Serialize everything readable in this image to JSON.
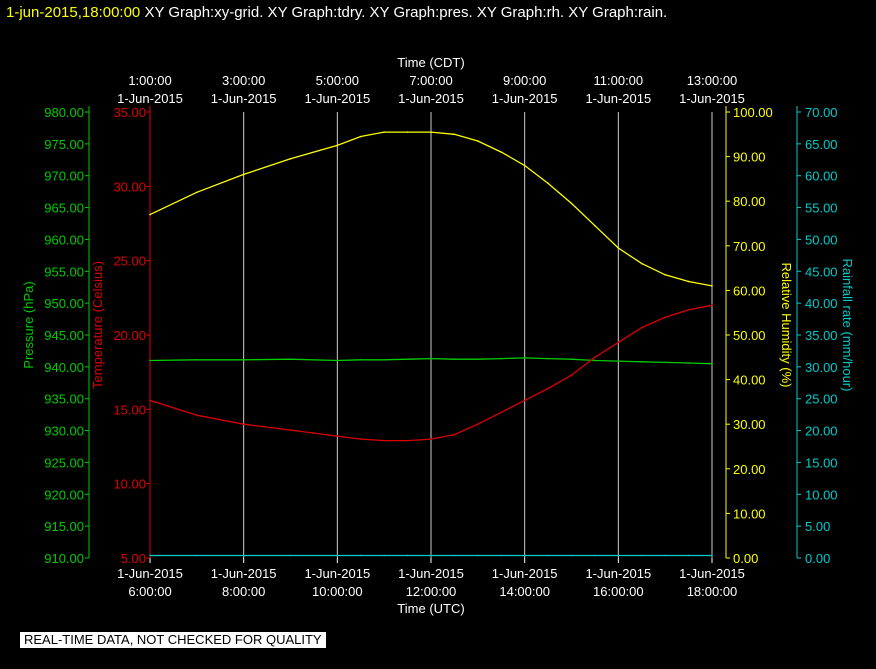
{
  "header": {
    "timestamp": "1-jun-2015,18:00:00",
    "graphs": "XY Graph:xy-grid.  XY Graph:tdry.  XY Graph:pres.  XY Graph:rh.  XY Graph:rain."
  },
  "banner": "REAL-TIME DATA, NOT CHECKED FOR QUALITY",
  "colors": {
    "pressure": "#00cc00",
    "temperature": "#dd0000",
    "humidity": "#ffff00",
    "rain": "#00cccc",
    "grid": "#ffffff",
    "background": "#000000"
  },
  "chart_data": {
    "type": "line",
    "grid": true,
    "x_axis_top": {
      "label": "Time (CDT)",
      "ticks": [
        {
          "time": "1:00:00",
          "date": "1-Jun-2015"
        },
        {
          "time": "3:00:00",
          "date": "1-Jun-2015"
        },
        {
          "time": "5:00:00",
          "date": "1-Jun-2015"
        },
        {
          "time": "7:00:00",
          "date": "1-Jun-2015"
        },
        {
          "time": "9:00:00",
          "date": "1-Jun-2015"
        },
        {
          "time": "11:00:00",
          "date": "1-Jun-2015"
        },
        {
          "time": "13:00:00",
          "date": "1-Jun-2015"
        }
      ]
    },
    "x_axis_bottom": {
      "label": "Time (UTC)",
      "ticks": [
        {
          "time": "6:00:00",
          "date": "1-Jun-2015"
        },
        {
          "time": "8:00:00",
          "date": "1-Jun-2015"
        },
        {
          "time": "10:00:00",
          "date": "1-Jun-2015"
        },
        {
          "time": "12:00:00",
          "date": "1-Jun-2015"
        },
        {
          "time": "14:00:00",
          "date": "1-Jun-2015"
        },
        {
          "time": "16:00:00",
          "date": "1-Jun-2015"
        },
        {
          "time": "18:00:00",
          "date": "1-Jun-2015"
        }
      ],
      "xlim": [
        "6:00:00",
        "18:00:00"
      ]
    },
    "y_axes": {
      "pressure": {
        "label": "Pressure (hPa)",
        "ylim": [
          910,
          980
        ],
        "ticks": [
          "910.00",
          "915.00",
          "920.00",
          "925.00",
          "930.00",
          "935.00",
          "940.00",
          "945.00",
          "950.00",
          "955.00",
          "960.00",
          "965.00",
          "970.00",
          "975.00",
          "980.00"
        ]
      },
      "temperature": {
        "label": "Temperature (Celsius)",
        "ylim": [
          5,
          35
        ],
        "ticks": [
          "5.00",
          "10.00",
          "15.00",
          "20.00",
          "25.00",
          "30.00",
          "35.00"
        ]
      },
      "humidity": {
        "label": "Relative Humidity (%)",
        "ylim": [
          0,
          100
        ],
        "ticks": [
          "0.00",
          "10.00",
          "20.00",
          "30.00",
          "40.00",
          "50.00",
          "60.00",
          "70.00",
          "80.00",
          "90.00",
          "100.00"
        ]
      },
      "rain": {
        "label": "Rainfall rate (mm/hour)",
        "ylim": [
          0,
          70
        ],
        "ticks": [
          "0.00",
          "5.00",
          "10.00",
          "15.00",
          "20.00",
          "25.00",
          "30.00",
          "35.00",
          "40.00",
          "45.00",
          "50.00",
          "55.00",
          "60.00",
          "65.00",
          "70.00"
        ]
      }
    },
    "x_hours_utc": [
      6,
      7,
      8,
      9,
      10,
      10.5,
      11,
      11.5,
      12,
      12.5,
      13,
      13.5,
      14,
      14.5,
      15,
      15.5,
      16,
      16.5,
      17,
      17.5,
      18
    ],
    "series": [
      {
        "name": "Pressure",
        "axis": "pressure",
        "values": [
          941.0,
          941.1,
          941.1,
          941.2,
          941.0,
          941.1,
          941.1,
          941.2,
          941.3,
          941.2,
          941.2,
          941.3,
          941.4,
          941.3,
          941.2,
          941.0,
          940.9,
          940.8,
          940.7,
          940.6,
          940.5
        ]
      },
      {
        "name": "Temperature",
        "axis": "temperature",
        "values": [
          15.6,
          14.6,
          14.0,
          13.6,
          13.2,
          13.0,
          12.9,
          12.9,
          13.0,
          13.3,
          14.0,
          14.8,
          15.6,
          16.4,
          17.3,
          18.5,
          19.5,
          20.5,
          21.2,
          21.7,
          22.0
        ]
      },
      {
        "name": "Relative Humidity",
        "axis": "humidity",
        "values": [
          77.0,
          82.0,
          86.0,
          89.5,
          92.5,
          94.5,
          95.5,
          95.5,
          95.5,
          95.0,
          93.5,
          91.0,
          88.0,
          84.0,
          79.5,
          74.5,
          69.5,
          66.0,
          63.5,
          62.0,
          61.0
        ]
      },
      {
        "name": "Rainfall rate",
        "axis": "rain",
        "values": [
          0.4,
          0.4,
          0.4,
          0.4,
          0.4,
          0.4,
          0.4,
          0.4,
          0.4,
          0.4,
          0.4,
          0.4,
          0.4,
          0.4,
          0.4,
          0.4,
          0.4,
          0.4,
          0.4,
          0.4,
          0.4
        ]
      }
    ]
  }
}
